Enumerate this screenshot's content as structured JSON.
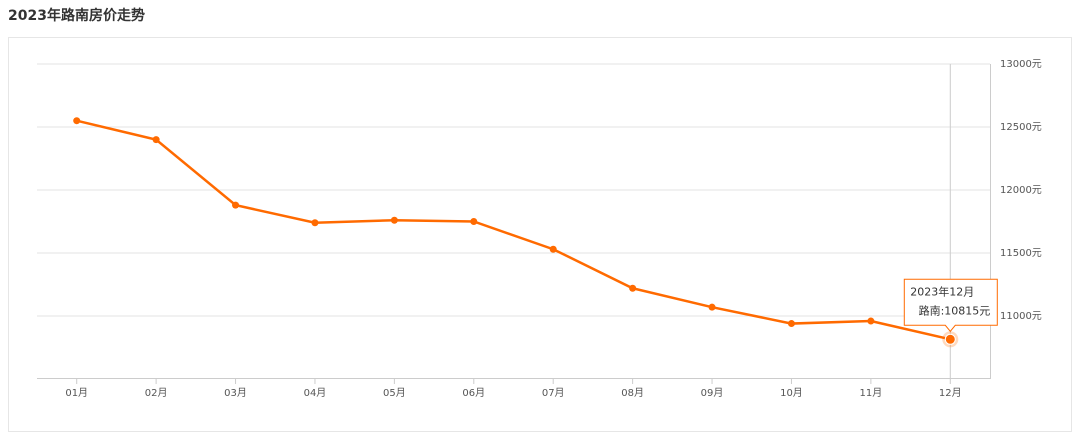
{
  "chart_data": {
    "type": "line",
    "title": "2023年路南房价走势",
    "categories": [
      "01月",
      "02月",
      "03月",
      "04月",
      "05月",
      "06月",
      "07月",
      "08月",
      "09月",
      "10月",
      "11月",
      "12月"
    ],
    "values": [
      12550,
      12400,
      11880,
      11740,
      11760,
      11750,
      11530,
      11220,
      11070,
      10940,
      10960,
      10815
    ],
    "color": "#ff6a00",
    "ylim": [
      10500,
      13000
    ],
    "yticks": [
      {
        "value": 11000,
        "label": "11000元"
      },
      {
        "value": 11500,
        "label": "11500元"
      },
      {
        "value": 12000,
        "label": "12000元"
      },
      {
        "value": 12500,
        "label": "12500元"
      },
      {
        "value": 13000,
        "label": "13000元"
      }
    ],
    "grid": true,
    "tooltip": {
      "title": "2023年12月",
      "text": "路南:10815元"
    }
  }
}
